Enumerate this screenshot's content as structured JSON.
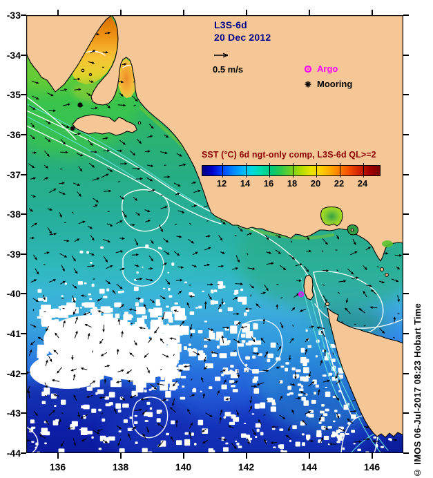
{
  "map": {
    "title_line1": "L3S-6d",
    "title_line2": "20 Dec 2012",
    "velocity_label": "0.5 m/s",
    "legend": {
      "argo_label": "Argo",
      "mooring_label": "Mooring"
    },
    "credit": "© IMOS 06-Jul-2017 08:23 Hobart Time",
    "colorbar": {
      "title": "SST (°C) 6d ngt-only comp, L3S-6d QL>=2",
      "tick_labels": [
        "12",
        "14",
        "16",
        "18",
        "20",
        "22",
        "24"
      ],
      "range_c": [
        10.3,
        25.5
      ],
      "gradient": [
        "#000080",
        "#0000c8",
        "#0040ff",
        "#0080ff",
        "#00b0ff",
        "#00d8e0",
        "#00dca8",
        "#00c878",
        "#30c84a",
        "#70d024",
        "#b0dc00",
        "#e8e400",
        "#ffd000",
        "#ffa800",
        "#ff7800",
        "#f04800",
        "#cc2000",
        "#a00000",
        "#7c0000"
      ]
    },
    "axes": {
      "lat_ticks": [
        -33,
        -34,
        -35,
        -36,
        -37,
        -38,
        -39,
        -40,
        -41,
        -42,
        -43,
        -44
      ],
      "lon_ticks": [
        136,
        138,
        140,
        142,
        144,
        146
      ],
      "lat_range": [
        -33,
        -44
      ],
      "lon_range": [
        135,
        147
      ]
    },
    "markers": {
      "argo_map": {
        "lon": 143.75,
        "lat": -40.0
      },
      "moorings": [
        {
          "lon": 136.71,
          "lat": -35.26
        },
        {
          "lon": 136.47,
          "lat": -35.85
        }
      ]
    },
    "colors": {
      "land": "#f6c796",
      "coast": "#000000",
      "argo": "#ff00ff",
      "title": "#00008b",
      "cbar_title": "#8b0000",
      "contour": "#ffffff",
      "contour2": "#62e0d8",
      "vector": "#000000"
    }
  },
  "chart_data": {
    "type": "heatmap",
    "title": "SST (°C) 6d ngt-only comp, L3S-6d QL>=2",
    "colorbar_ticks_c": [
      12,
      14,
      16,
      18,
      20,
      22,
      24
    ],
    "colorbar_range_c": [
      10.3,
      25.5
    ],
    "lon_range": [
      135,
      147
    ],
    "lat_range": [
      -44,
      -33
    ],
    "annotations": [
      "L3S-6d",
      "20 Dec 2012",
      "0.5 m/s",
      "Argo",
      "Mooring"
    ]
  }
}
